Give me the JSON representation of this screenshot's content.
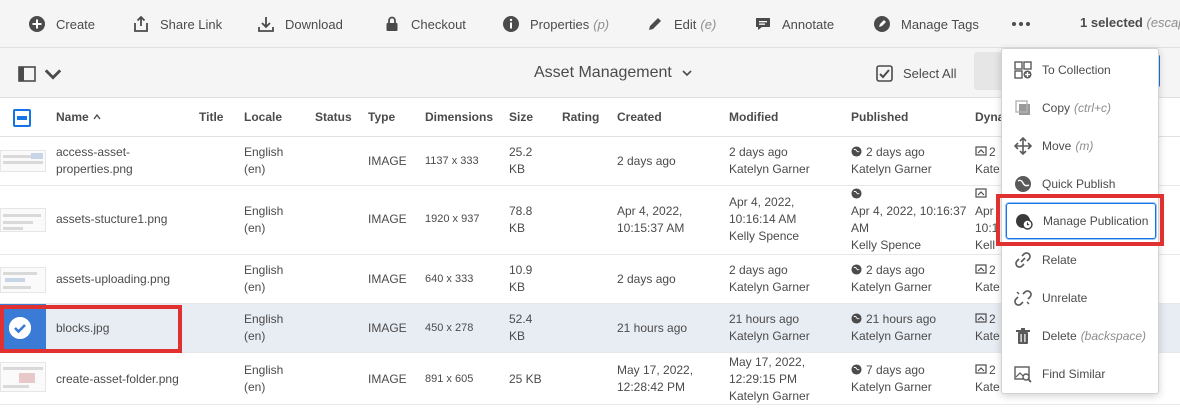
{
  "actionbar": {
    "create": "Create",
    "share_link": "Share Link",
    "download": "Download",
    "checkout": "Checkout",
    "properties": "Properties",
    "properties_hint": "(p)",
    "edit": "Edit",
    "edit_hint": "(e)",
    "annotate": "Annotate",
    "manage_tags": "Manage Tags",
    "selected_count": "1 selected",
    "selected_hint": "(escap"
  },
  "header": {
    "title": "Asset Management",
    "select_all": "Select All"
  },
  "table": {
    "columns": [
      "Name",
      "Title",
      "Locale",
      "Status",
      "Type",
      "Dimensions",
      "Size",
      "Rating",
      "Created",
      "Modified",
      "Published",
      "Dyna"
    ],
    "rows": [
      {
        "name_line1": "access-asset-",
        "name_line2": "properties.png",
        "locale_line1": "English",
        "locale_line2": "(en)",
        "type": "IMAGE",
        "dimensions": "1137 x 333",
        "size_line1": "25.2",
        "size_line2": "KB",
        "created_line1": "2 days ago",
        "created_line2": "",
        "modified_line1": "2 days ago",
        "modified_line2": "Katelyn Garner",
        "published_line1": "2 days ago",
        "published_line2": "Katelyn Garner",
        "dyn_line1": "2",
        "dyn_line2": "Kate"
      },
      {
        "name_line1": "assets-stucture1.png",
        "locale_line1": "English",
        "locale_line2": "(en)",
        "type": "IMAGE",
        "dimensions": "1920 x 937",
        "size_line1": "78.8",
        "size_line2": "KB",
        "created_line1": "Apr 4, 2022,",
        "created_line2": "10:15:37 AM",
        "modified_line1": "Apr 4, 2022,",
        "modified_line2": "10:16:14 AM",
        "modified_line3": "Kelly Spence",
        "published_line1": "Apr 4, 2022, 10:16:37",
        "published_line2": "AM",
        "published_line3": "Kelly Spence",
        "dyn_line1": "Apr",
        "dyn_line2": "10:1",
        "dyn_line3": "Kell"
      },
      {
        "name_line1": "assets-uploading.png",
        "locale_line1": "English",
        "locale_line2": "(en)",
        "type": "IMAGE",
        "dimensions": "640 x 333",
        "size_line1": "10.9",
        "size_line2": "KB",
        "created_line1": "2 days ago",
        "modified_line1": "2 days ago",
        "modified_line2": "Katelyn Garner",
        "published_line1": "2 days ago",
        "published_line2": "Katelyn Garner",
        "dyn_line1": "2",
        "dyn_line2": "Kate"
      },
      {
        "name_line1": "blocks.jpg",
        "locale_line1": "English",
        "locale_line2": "(en)",
        "type": "IMAGE",
        "dimensions": "450 x 278",
        "size_line1": "52.4",
        "size_line2": "KB",
        "created_line1": "21 hours ago",
        "modified_line1": "21 hours ago",
        "modified_line2": "Katelyn Garner",
        "published_line1": "21 hours ago",
        "published_line2": "Katelyn Garner",
        "dyn_line1": "2",
        "dyn_line2": "Kate"
      },
      {
        "name_line1": "create-asset-folder.png",
        "locale_line1": "English",
        "locale_line2": "(en)",
        "type": "IMAGE",
        "dimensions": "891 x 605",
        "size_line1": "25 KB",
        "created_line1": "May 17, 2022,",
        "created_line2": "12:28:42 PM",
        "modified_line1": "May 17, 2022,",
        "modified_line2": "12:29:15 PM",
        "modified_line3": "Katelyn Garner",
        "published_line1": "7 days ago",
        "published_line2": "Katelyn Garner",
        "dyn_line1": "2",
        "dyn_line2": "Kate"
      }
    ]
  },
  "menu": {
    "items": [
      {
        "label": "To Collection",
        "hint": ""
      },
      {
        "label": "Copy",
        "hint": "(ctrl+c)"
      },
      {
        "label": "Move",
        "hint": "(m)"
      },
      {
        "label": "Quick Publish",
        "hint": ""
      },
      {
        "label": "Manage Publication",
        "hint": ""
      },
      {
        "label": "Relate",
        "hint": ""
      },
      {
        "label": "Unrelate",
        "hint": ""
      },
      {
        "label": "Delete",
        "hint": "(backspace)"
      },
      {
        "label": "Find Similar",
        "hint": ""
      }
    ]
  },
  "colors": {
    "accent": "#1473e6",
    "highlight_box": "#e03030",
    "selected_row": "#e8ecf3",
    "toolbar_bg": "#f5f5f5"
  }
}
